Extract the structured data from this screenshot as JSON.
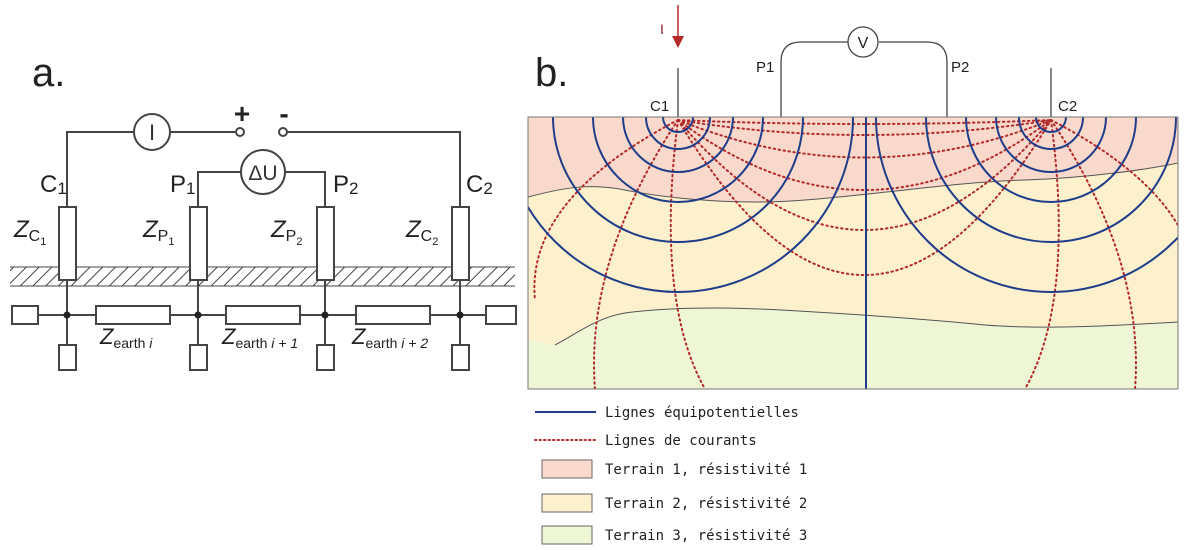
{
  "panel_a": {
    "label": "a.",
    "ammeter_symbol": "I",
    "voltmeter_symbol": "ΔU",
    "plus": "+",
    "minus": "-",
    "electrodes": [
      {
        "label": "C",
        "sub": "1",
        "z_main": "Z",
        "z_sub": "C",
        "z_subsub": "1"
      },
      {
        "label": "P",
        "sub": "1",
        "z_main": "Z",
        "z_sub": "P",
        "z_subsub": "1"
      },
      {
        "label": "P",
        "sub": "2",
        "z_main": "Z",
        "z_sub": "P",
        "z_subsub": "2"
      },
      {
        "label": "C",
        "sub": "2",
        "z_main": "Z",
        "z_sub": "C",
        "z_subsub": "2"
      }
    ],
    "earth_impedances": [
      {
        "main": "Z",
        "sub": "earth ",
        "idx": "i"
      },
      {
        "main": "Z",
        "sub": "earth ",
        "idx": "i + 1"
      },
      {
        "main": "Z",
        "sub": "earth ",
        "idx": "i + 2"
      }
    ]
  },
  "panel_b": {
    "label": "b.",
    "current_symbol": "I",
    "voltmeter_symbol": "V",
    "electrodes": {
      "c1": "C1",
      "c2": "C2",
      "p1": "P1",
      "p2": "P2"
    },
    "colors": {
      "equipotential": "#1f3d8a",
      "current": "#b22a2a",
      "terrain1": "#f9d9cc",
      "terrain2": "#fcf0cd",
      "terrain3": "#eef6d5"
    },
    "legend": [
      {
        "type": "line-solid",
        "label": "Lignes équipotentielles"
      },
      {
        "type": "line-dotted",
        "label": "Lignes de courants"
      },
      {
        "type": "swatch",
        "color_key": "terrain1",
        "label": "Terrain 1, résistivité 1"
      },
      {
        "type": "swatch",
        "color_key": "terrain2",
        "label": "Terrain 2, résistivité 2"
      },
      {
        "type": "swatch",
        "color_key": "terrain3",
        "label": "Terrain 3, résistivité 3"
      }
    ]
  }
}
